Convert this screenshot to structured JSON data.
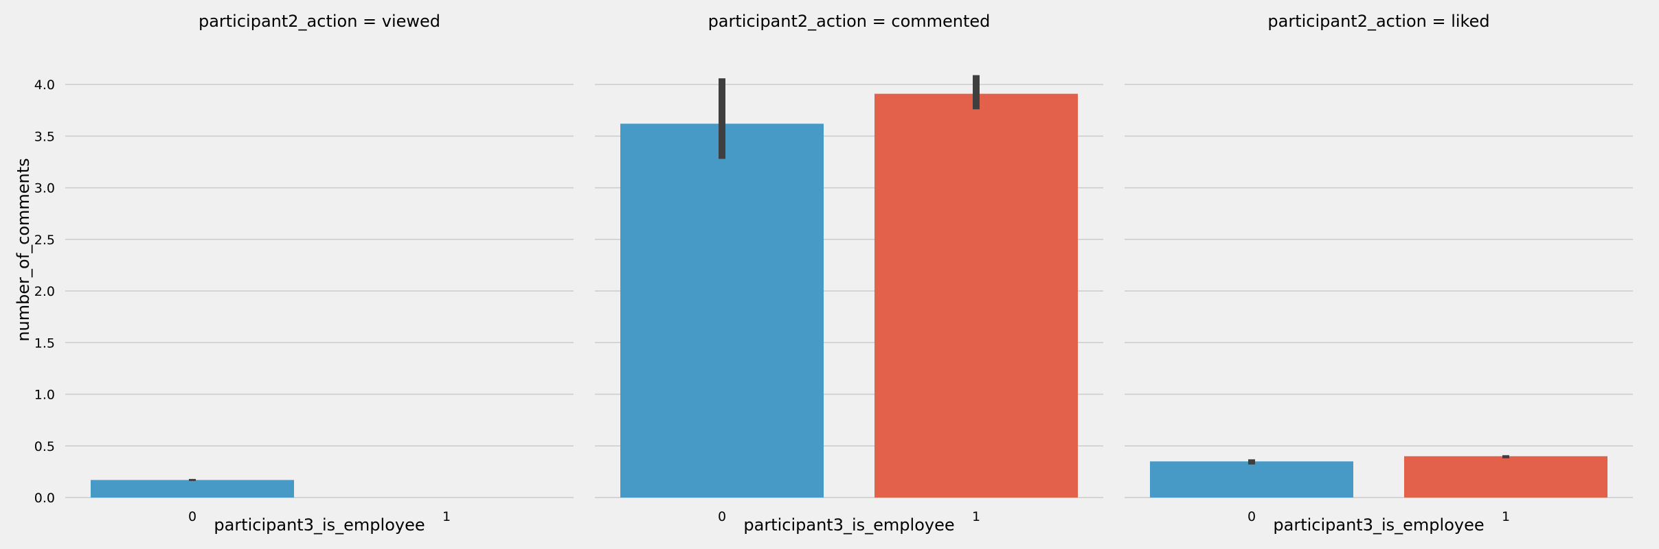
{
  "colors": {
    "background": "#f0f0f0",
    "grid": "#cbcbcb",
    "series_0": "#4799c6",
    "series_1": "#e3604a",
    "error_bar": "#3f3f3f"
  },
  "chart_data": [
    {
      "type": "bar",
      "title": "participant2_action = viewed",
      "xlabel": "participant3_is_employee",
      "ylabel": "number_of_comments",
      "categories": [
        "0",
        "1"
      ],
      "values": [
        0.17,
        null
      ],
      "error_bars": [
        [
          0.16,
          0.18
        ],
        null
      ],
      "ylim": [
        0,
        4.2
      ],
      "yticks": [
        "0.0",
        "0.5",
        "1.0",
        "1.5",
        "2.0",
        "2.5",
        "3.0",
        "3.5",
        "4.0"
      ],
      "grid": true
    },
    {
      "type": "bar",
      "title": "participant2_action = commented",
      "xlabel": "participant3_is_employee",
      "ylabel": "",
      "categories": [
        "0",
        "1"
      ],
      "values": [
        3.62,
        3.91
      ],
      "error_bars": [
        [
          3.28,
          4.06
        ],
        [
          3.76,
          4.09
        ]
      ],
      "ylim": [
        0,
        4.2
      ],
      "grid": true
    },
    {
      "type": "bar",
      "title": "participant2_action = liked",
      "xlabel": "participant3_is_employee",
      "ylabel": "",
      "categories": [
        "0",
        "1"
      ],
      "values": [
        0.35,
        0.4
      ],
      "error_bars": [
        [
          0.32,
          0.37
        ],
        [
          0.38,
          0.41
        ]
      ],
      "ylim": [
        0,
        4.2
      ],
      "grid": true
    }
  ]
}
